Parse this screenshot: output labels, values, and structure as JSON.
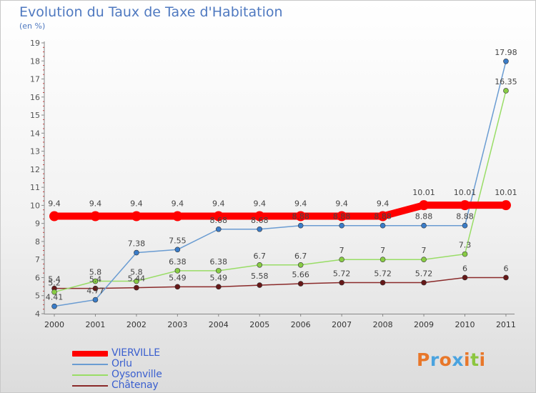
{
  "chart_data": {
    "type": "line",
    "title": "Evolution du Taux de Taxe d'Habitation",
    "subtitle": "(en %)",
    "xlabel": "",
    "ylabel": "(en %)",
    "ylim": [
      4,
      19
    ],
    "yticks": [
      "4",
      "5",
      "6",
      "7",
      "8",
      "9",
      "10",
      "11",
      "12",
      "13",
      "14",
      "15",
      "16",
      "17",
      "18",
      "19"
    ],
    "categories": [
      "2000",
      "2001",
      "2002",
      "2003",
      "2004",
      "2005",
      "2006",
      "2007",
      "2008",
      "2009",
      "2010",
      "2011"
    ],
    "grid": false,
    "legend_position": "bottom-left",
    "series": [
      {
        "name": "VIERVILLE",
        "color": "#ff0000",
        "values": [
          9.4,
          9.4,
          9.4,
          9.4,
          9.4,
          9.4,
          9.4,
          9.4,
          9.4,
          10.01,
          10.01,
          10.01
        ],
        "labels": [
          "9.4",
          "9.4",
          "9.4",
          "9.4",
          "9.4",
          "9.4",
          "9.4",
          "9.4",
          "9.4",
          "10.01",
          "10.01",
          "10.01"
        ]
      },
      {
        "name": "Orlu",
        "color": "#6a9cd2",
        "values": [
          4.41,
          4.77,
          7.38,
          7.55,
          8.68,
          8.68,
          8.88,
          8.88,
          8.88,
          8.88,
          8.88,
          17.98
        ],
        "labels": [
          "4.41",
          "4.77",
          "7.38",
          "7.55",
          "8.68",
          "8.68",
          "8.88",
          "8.88",
          "8.88",
          "8.88",
          "8.88",
          "17.98"
        ]
      },
      {
        "name": "Oysonville",
        "color": "#99dd66",
        "values": [
          5.2,
          5.8,
          5.8,
          6.38,
          6.38,
          6.7,
          6.7,
          7,
          7,
          7,
          7.3,
          16.35
        ],
        "labels": [
          "5.2",
          "5.8",
          "5.8",
          "6.38",
          "6.38",
          "6.7",
          "6.7",
          "7",
          "7",
          "7",
          "7.3",
          "16.35"
        ]
      },
      {
        "name": "Châtenay",
        "color": "#8a2a2a",
        "values": [
          5.4,
          5.4,
          5.44,
          5.49,
          5.49,
          5.58,
          5.66,
          5.72,
          5.72,
          5.72,
          6,
          6
        ],
        "labels": [
          "5.4",
          "5.4",
          "5.44",
          "5.49",
          "5.49",
          "5.58",
          "5.66",
          "5.72",
          "5.72",
          "5.72",
          "6",
          "6"
        ]
      }
    ]
  },
  "branding": {
    "logo_text": "Proxiti",
    "logo_colors": [
      "#e8772a",
      "#4aa3df",
      "#e8772a",
      "#4aa3df",
      "#e8772a",
      "#8cc63f",
      "#e8772a"
    ]
  }
}
